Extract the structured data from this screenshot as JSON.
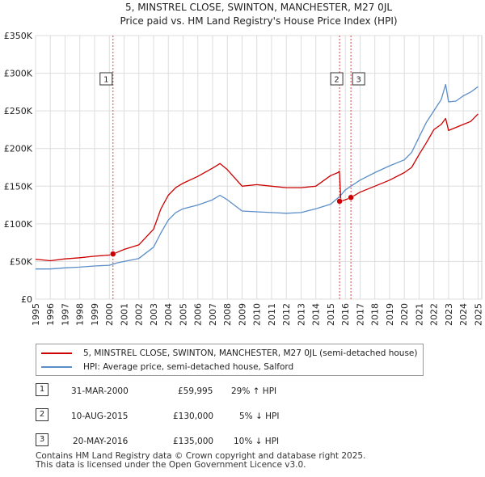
{
  "chart_data": {
    "type": "line",
    "title": "5, MINSTREL CLOSE, SWINTON, MANCHESTER, M27 0JL",
    "subtitle": "Price paid vs. HM Land Registry's House Price Index (HPI)",
    "ylim": [
      0,
      350000
    ],
    "xlim": [
      1995,
      2025.25
    ],
    "y_ticks": [
      0,
      50000,
      100000,
      150000,
      200000,
      250000,
      300000,
      350000
    ],
    "y_tick_labels": [
      "£0",
      "£50K",
      "£100K",
      "£150K",
      "£200K",
      "£250K",
      "£300K",
      "£350K"
    ],
    "x_ticks": [
      "1995",
      "1996",
      "1997",
      "1998",
      "1999",
      "2000",
      "2001",
      "2002",
      "2003",
      "2004",
      "2005",
      "2006",
      "2007",
      "2008",
      "2009",
      "2010",
      "2011",
      "2012",
      "2013",
      "2014",
      "2015",
      "2016",
      "2017",
      "2018",
      "2019",
      "2020",
      "2021",
      "2022",
      "2023",
      "2024",
      "2025"
    ],
    "series": [
      {
        "name": "5, MINSTREL CLOSE, SWINTON, MANCHESTER, M27 0JL (semi-detached house)",
        "color": "#cc0000",
        "x": [
          1995.0,
          1996.0,
          1997.0,
          1998.0,
          1999.0,
          2000.0,
          2000.25,
          2000.5,
          2001.0,
          2002.0,
          2003.0,
          2003.5,
          2004.0,
          2004.5,
          2005.0,
          2006.0,
          2007.0,
          2007.5,
          2008.0,
          2009.0,
          2010.0,
          2011.0,
          2012.0,
          2013.0,
          2014.0,
          2015.0,
          2015.5,
          2015.6,
          2015.7,
          2016.0,
          2016.38,
          2017.0,
          2018.0,
          2019.0,
          2020.0,
          2020.5,
          2021.0,
          2021.5,
          2022.0,
          2022.5,
          2022.8,
          2023.0,
          2023.5,
          2024.0,
          2024.5,
          2025.0
        ],
        "y": [
          53000,
          51000,
          53500,
          55000,
          57000,
          58500,
          59995,
          62000,
          66000,
          72000,
          93000,
          120000,
          138000,
          148000,
          154000,
          163000,
          174000,
          180000,
          172000,
          150000,
          152000,
          150000,
          148000,
          148000,
          150000,
          164000,
          168000,
          170000,
          130000,
          132000,
          135000,
          142000,
          150000,
          158000,
          168000,
          175000,
          192000,
          208000,
          225000,
          232000,
          240000,
          224000,
          228000,
          232000,
          236000,
          246000
        ]
      },
      {
        "name": "HPI: Average price, semi-detached house, Salford",
        "color": "#5b8ec8",
        "x": [
          1995.0,
          1996.0,
          1997.0,
          1998.0,
          1999.0,
          2000.0,
          2000.25,
          2000.5,
          2001.0,
          2002.0,
          2003.0,
          2003.5,
          2004.0,
          2004.5,
          2005.0,
          2006.0,
          2007.0,
          2007.5,
          2008.0,
          2009.0,
          2010.0,
          2011.0,
          2012.0,
          2013.0,
          2014.0,
          2015.0,
          2015.6,
          2016.0,
          2016.38,
          2017.0,
          2018.0,
          2019.0,
          2020.0,
          2020.5,
          2021.0,
          2021.5,
          2022.0,
          2022.5,
          2022.8,
          2023.0,
          2023.5,
          2024.0,
          2024.5,
          2025.0
        ],
        "y": [
          40000,
          40000,
          41500,
          42500,
          44000,
          45000,
          46500,
          48000,
          50000,
          54000,
          69000,
          88000,
          105000,
          115000,
          120000,
          125000,
          132000,
          138000,
          132000,
          117000,
          116000,
          115000,
          114000,
          115000,
          120000,
          126000,
          136000,
          145000,
          150000,
          158000,
          168000,
          177000,
          185000,
          195000,
          215000,
          235000,
          250000,
          265000,
          285000,
          262000,
          263000,
          270000,
          275000,
          282000
        ]
      }
    ],
    "markers": [
      {
        "label": "1",
        "x": 2000.25,
        "y": 59995
      },
      {
        "label": "2",
        "x": 2015.61,
        "y": 130000
      },
      {
        "label": "3",
        "x": 2016.38,
        "y": 135000
      }
    ]
  },
  "legend": {
    "items": [
      {
        "label": "5, MINSTREL CLOSE, SWINTON, MANCHESTER, M27 0JL (semi-detached house)",
        "color": "#cc0000"
      },
      {
        "label": "HPI: Average price, semi-detached house, Salford",
        "color": "#5b8ec8"
      }
    ]
  },
  "transactions": [
    {
      "num": "1",
      "date": "31-MAR-2000",
      "price": "£59,995",
      "hpi": "29% ↑ HPI"
    },
    {
      "num": "2",
      "date": "10-AUG-2015",
      "price": "£130,000",
      "hpi": "5% ↓ HPI"
    },
    {
      "num": "3",
      "date": "20-MAY-2016",
      "price": "£135,000",
      "hpi": "10% ↓ HPI"
    }
  ],
  "footer": {
    "line1": "Contains HM Land Registry data © Crown copyright and database right 2025.",
    "line2": "This data is licensed under the Open Government Licence v3.0."
  }
}
